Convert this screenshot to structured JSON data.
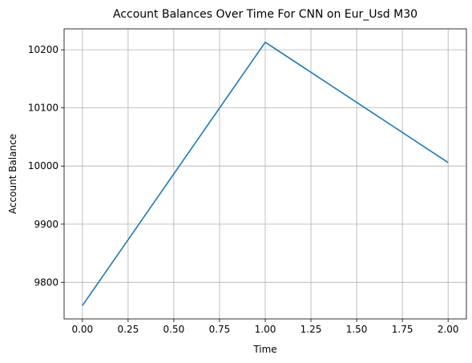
{
  "chart_data": {
    "type": "line",
    "title": "Account Balances Over Time For CNN on Eur_Usd M30",
    "xlabel": "Time",
    "ylabel": "Account Balance",
    "x": [
      0,
      1,
      2
    ],
    "series": [
      {
        "values": [
          9760,
          10213,
          10006
        ]
      }
    ],
    "xlim": [
      -0.1,
      2.1
    ],
    "ylim": [
      9737,
      10236
    ],
    "xticks": [
      0,
      0.25,
      0.5,
      0.75,
      1.0,
      1.25,
      1.5,
      1.75,
      2.0
    ],
    "xtick_labels": [
      "0.00",
      "0.25",
      "0.50",
      "0.75",
      "1.00",
      "1.25",
      "1.50",
      "1.75",
      "2.00"
    ],
    "yticks": [
      9800,
      9900,
      10000,
      10100,
      10200
    ],
    "ytick_labels": [
      "9800",
      "9900",
      "10000",
      "10100",
      "10200"
    ],
    "grid": true,
    "line_color": "#1f77b4",
    "grid_color": "#b0b0b0"
  }
}
